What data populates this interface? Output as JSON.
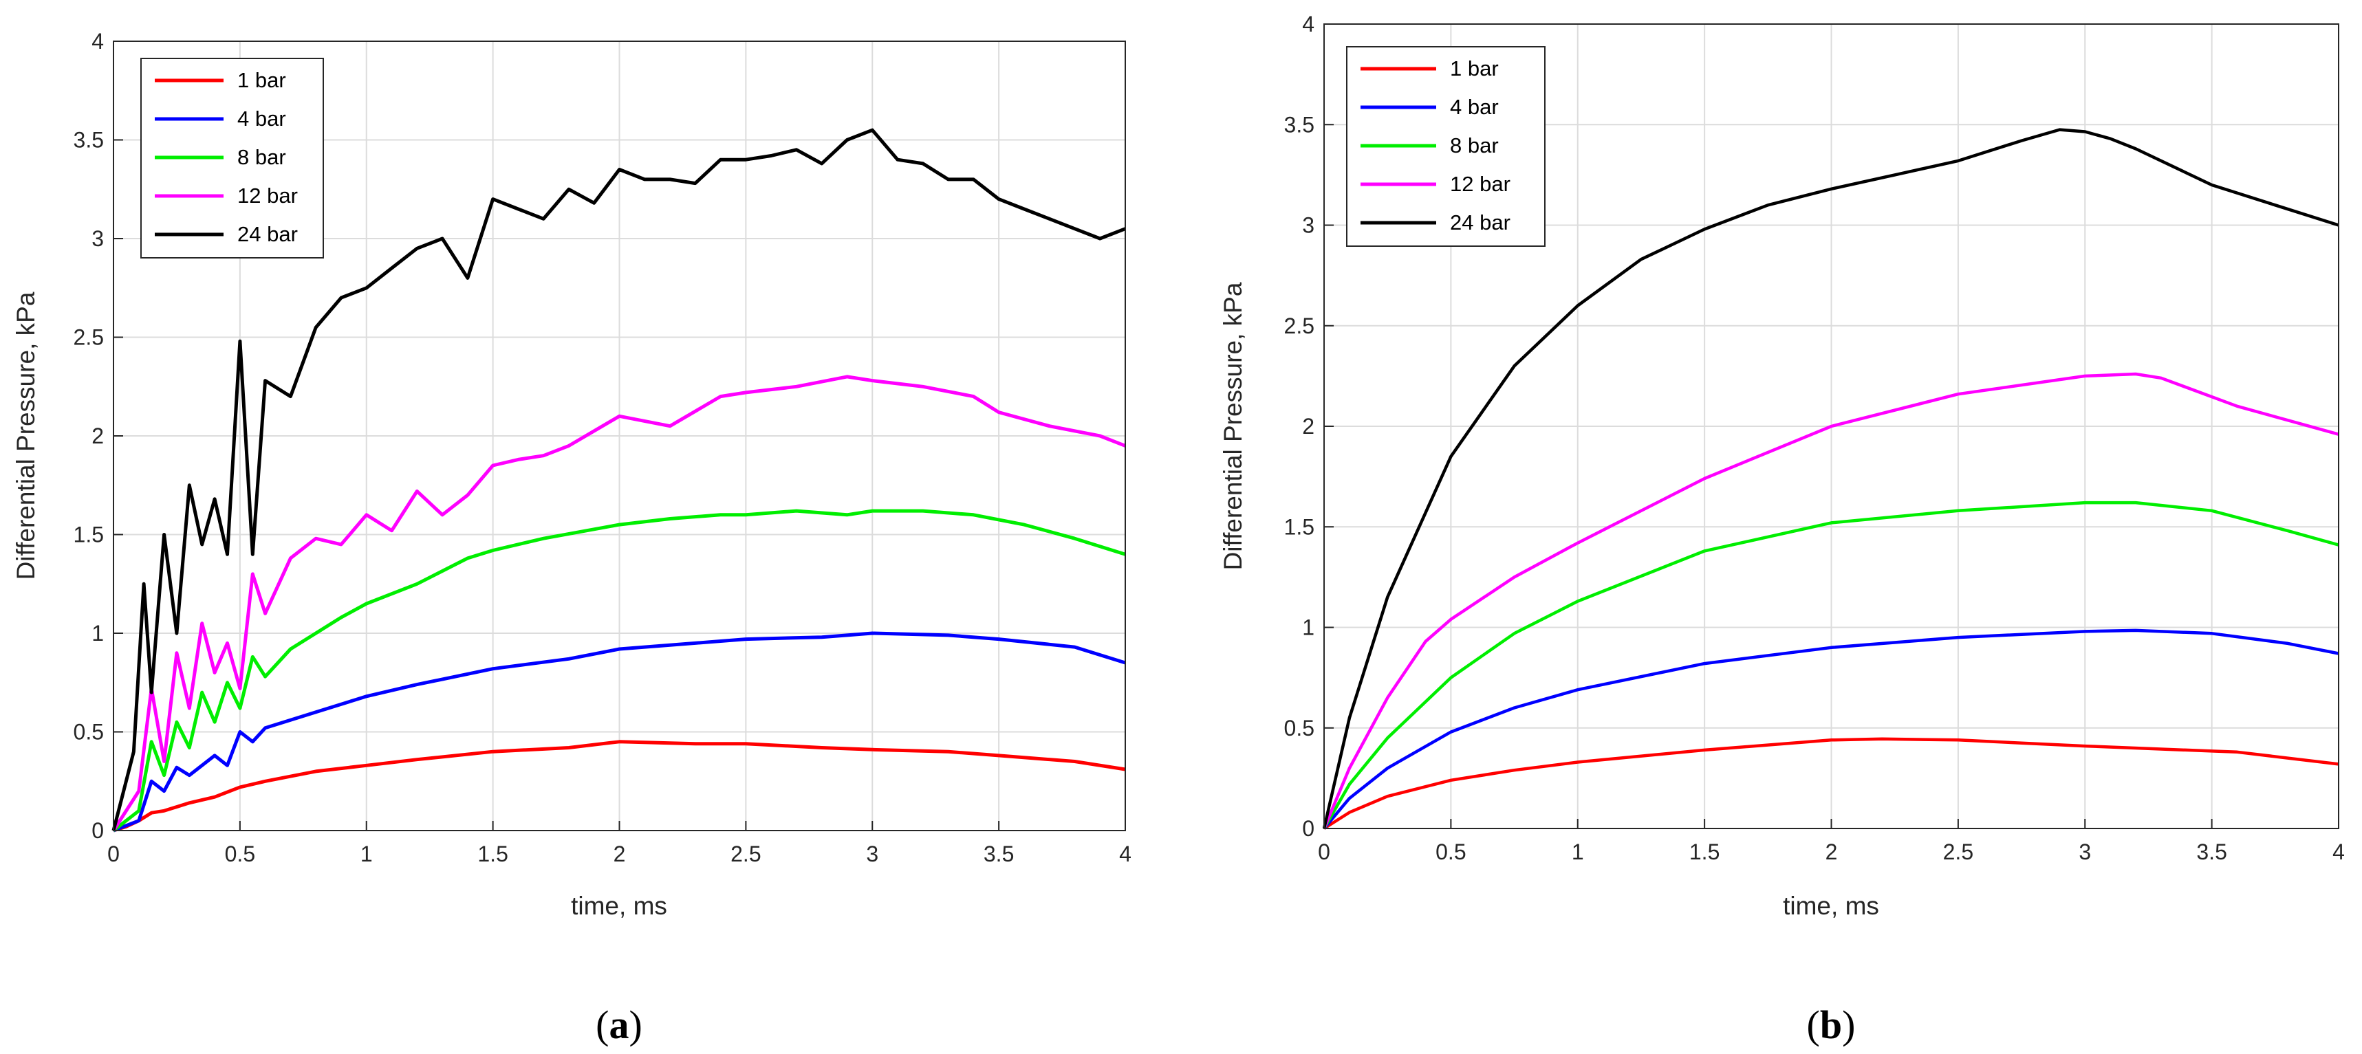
{
  "colors": {
    "1 bar": "#ff0000",
    "4 bar": "#0000ff",
    "8 bar": "#00ee00",
    "12 bar": "#ff00ff",
    "24 bar": "#000000",
    "grid": "#dcdcdc",
    "axis": "#262626"
  },
  "chart_data": [
    {
      "id": "a",
      "type": "line",
      "caption_open": "(",
      "caption_letter": "a",
      "caption_close": ")",
      "xlabel": "time, ms",
      "ylabel": "Differential Pressure, kPa",
      "xlim": [
        0,
        4
      ],
      "ylim": [
        0,
        4
      ],
      "xticks": [
        0,
        0.5,
        1,
        1.5,
        2,
        2.5,
        3,
        3.5,
        4
      ],
      "xtick_labels": [
        "0",
        "0.5",
        "1",
        "1.5",
        "2",
        "2.5",
        "3",
        "3.5",
        "4"
      ],
      "yticks": [
        0,
        0.5,
        1,
        1.5,
        2,
        2.5,
        3,
        3.5,
        4
      ],
      "ytick_labels": [
        "0",
        "0.5",
        "1",
        "1.5",
        "2",
        "2.5",
        "3",
        "3.5",
        "4"
      ],
      "grid": true,
      "legend_position": "top-left",
      "series": [
        {
          "name": "1 bar",
          "x": [
            0,
            0.05,
            0.1,
            0.15,
            0.2,
            0.3,
            0.4,
            0.5,
            0.6,
            0.8,
            1,
            1.2,
            1.5,
            1.8,
            2,
            2.3,
            2.5,
            2.8,
            3,
            3.3,
            3.5,
            3.8,
            4
          ],
          "y": [
            0,
            0.02,
            0.05,
            0.09,
            0.1,
            0.14,
            0.17,
            0.22,
            0.25,
            0.3,
            0.33,
            0.36,
            0.4,
            0.42,
            0.45,
            0.44,
            0.44,
            0.42,
            0.41,
            0.4,
            0.38,
            0.35,
            0.31
          ]
        },
        {
          "name": "4 bar",
          "x": [
            0,
            0.1,
            0.15,
            0.2,
            0.25,
            0.3,
            0.4,
            0.45,
            0.5,
            0.55,
            0.6,
            0.8,
            1,
            1.2,
            1.5,
            1.8,
            2,
            2.3,
            2.5,
            2.8,
            3,
            3.3,
            3.5,
            3.8,
            4
          ],
          "y": [
            0,
            0.05,
            0.25,
            0.2,
            0.32,
            0.28,
            0.38,
            0.33,
            0.5,
            0.45,
            0.52,
            0.6,
            0.68,
            0.74,
            0.82,
            0.87,
            0.92,
            0.95,
            0.97,
            0.98,
            1.0,
            0.99,
            0.97,
            0.93,
            0.85
          ]
        },
        {
          "name": "8 bar",
          "x": [
            0,
            0.1,
            0.15,
            0.2,
            0.25,
            0.3,
            0.35,
            0.4,
            0.45,
            0.5,
            0.55,
            0.6,
            0.7,
            0.8,
            0.9,
            1,
            1.2,
            1.4,
            1.5,
            1.7,
            2,
            2.2,
            2.4,
            2.5,
            2.7,
            2.9,
            3,
            3.2,
            3.4,
            3.6,
            3.8,
            4
          ],
          "y": [
            0,
            0.1,
            0.45,
            0.28,
            0.55,
            0.42,
            0.7,
            0.55,
            0.75,
            0.62,
            0.88,
            0.78,
            0.92,
            1.0,
            1.08,
            1.15,
            1.25,
            1.38,
            1.42,
            1.48,
            1.55,
            1.58,
            1.6,
            1.6,
            1.62,
            1.6,
            1.62,
            1.62,
            1.6,
            1.55,
            1.48,
            1.4
          ]
        },
        {
          "name": "12 bar",
          "x": [
            0,
            0.1,
            0.15,
            0.2,
            0.25,
            0.3,
            0.35,
            0.4,
            0.45,
            0.5,
            0.55,
            0.6,
            0.7,
            0.8,
            0.9,
            1,
            1.1,
            1.2,
            1.3,
            1.4,
            1.5,
            1.6,
            1.7,
            1.8,
            2,
            2.2,
            2.4,
            2.5,
            2.7,
            2.9,
            3,
            3.2,
            3.4,
            3.5,
            3.7,
            3.9,
            4
          ],
          "y": [
            0,
            0.2,
            0.72,
            0.35,
            0.9,
            0.62,
            1.05,
            0.8,
            0.95,
            0.72,
            1.3,
            1.1,
            1.38,
            1.48,
            1.45,
            1.6,
            1.52,
            1.72,
            1.6,
            1.7,
            1.85,
            1.88,
            1.9,
            1.95,
            2.1,
            2.05,
            2.2,
            2.22,
            2.25,
            2.3,
            2.28,
            2.25,
            2.2,
            2.12,
            2.05,
            2.0,
            1.95
          ]
        },
        {
          "name": "24 bar",
          "x": [
            0,
            0.08,
            0.12,
            0.15,
            0.2,
            0.25,
            0.3,
            0.35,
            0.4,
            0.45,
            0.5,
            0.55,
            0.6,
            0.7,
            0.8,
            0.9,
            1,
            1.1,
            1.2,
            1.3,
            1.4,
            1.5,
            1.6,
            1.7,
            1.8,
            1.9,
            2,
            2.1,
            2.2,
            2.3,
            2.4,
            2.5,
            2.6,
            2.7,
            2.8,
            2.9,
            3,
            3.1,
            3.2,
            3.3,
            3.4,
            3.5,
            3.6,
            3.7,
            3.8,
            3.9,
            4
          ],
          "y": [
            0,
            0.4,
            1.25,
            0.7,
            1.5,
            1.0,
            1.75,
            1.45,
            1.68,
            1.4,
            2.48,
            1.4,
            2.28,
            2.2,
            2.55,
            2.7,
            2.75,
            2.85,
            2.95,
            3.0,
            2.8,
            3.2,
            3.15,
            3.1,
            3.25,
            3.18,
            3.35,
            3.3,
            3.3,
            3.28,
            3.4,
            3.4,
            3.42,
            3.45,
            3.38,
            3.5,
            3.55,
            3.4,
            3.38,
            3.3,
            3.3,
            3.2,
            3.15,
            3.1,
            3.05,
            3.0,
            3.05
          ]
        }
      ]
    },
    {
      "id": "b",
      "type": "line",
      "caption_open": "(",
      "caption_letter": "b",
      "caption_close": ")",
      "xlabel": "time, ms",
      "ylabel": "Differential Pressure, kPa",
      "xlim": [
        0,
        4
      ],
      "ylim": [
        0,
        4
      ],
      "xticks": [
        0,
        0.5,
        1,
        1.5,
        2,
        2.5,
        3,
        3.5,
        4
      ],
      "xtick_labels": [
        "0",
        "0.5",
        "1",
        "1.5",
        "2",
        "2.5",
        "3",
        "3.5",
        "4"
      ],
      "yticks": [
        0,
        0.5,
        1,
        1.5,
        2,
        2.5,
        3,
        3.5,
        4
      ],
      "ytick_labels": [
        "0",
        "0.5",
        "1",
        "1.5",
        "2",
        "2.5",
        "3",
        "3.5",
        "4"
      ],
      "grid": true,
      "legend_position": "top-left",
      "series": [
        {
          "name": "1 bar",
          "x": [
            0,
            0.1,
            0.25,
            0.5,
            0.75,
            1,
            1.5,
            2,
            2.2,
            2.5,
            3,
            3.5,
            3.6,
            4
          ],
          "y": [
            0,
            0.08,
            0.16,
            0.24,
            0.29,
            0.33,
            0.39,
            0.44,
            0.445,
            0.44,
            0.41,
            0.385,
            0.38,
            0.32
          ]
        },
        {
          "name": "4 bar",
          "x": [
            0,
            0.1,
            0.25,
            0.5,
            0.75,
            1,
            1.5,
            2,
            2.5,
            3,
            3.2,
            3.5,
            3.8,
            4
          ],
          "y": [
            0,
            0.15,
            0.3,
            0.48,
            0.6,
            0.69,
            0.82,
            0.9,
            0.95,
            0.98,
            0.985,
            0.97,
            0.92,
            0.87
          ]
        },
        {
          "name": "8 bar",
          "x": [
            0,
            0.1,
            0.25,
            0.5,
            0.75,
            1,
            1.5,
            2,
            2.5,
            3,
            3.2,
            3.5,
            3.8,
            4
          ],
          "y": [
            0,
            0.22,
            0.45,
            0.75,
            0.97,
            1.13,
            1.38,
            1.52,
            1.58,
            1.62,
            1.62,
            1.58,
            1.48,
            1.41
          ]
        },
        {
          "name": "12 bar",
          "x": [
            0,
            0.1,
            0.25,
            0.4,
            0.5,
            0.75,
            1,
            1.5,
            2,
            2.5,
            3,
            3.2,
            3.3,
            3.6,
            4
          ],
          "y": [
            0,
            0.3,
            0.65,
            0.93,
            1.04,
            1.25,
            1.42,
            1.74,
            2.0,
            2.16,
            2.25,
            2.26,
            2.24,
            2.1,
            1.96
          ]
        },
        {
          "name": "24 bar",
          "x": [
            0,
            0.1,
            0.25,
            0.5,
            0.75,
            1,
            1.25,
            1.5,
            1.75,
            2,
            2.25,
            2.5,
            2.75,
            2.9,
            3.0,
            3.1,
            3.2,
            3.5,
            3.75,
            4
          ],
          "y": [
            0,
            0.55,
            1.15,
            1.85,
            2.3,
            2.6,
            2.83,
            2.98,
            3.1,
            3.18,
            3.25,
            3.32,
            3.42,
            3.475,
            3.465,
            3.43,
            3.38,
            3.2,
            3.1,
            3.0
          ]
        }
      ]
    }
  ]
}
